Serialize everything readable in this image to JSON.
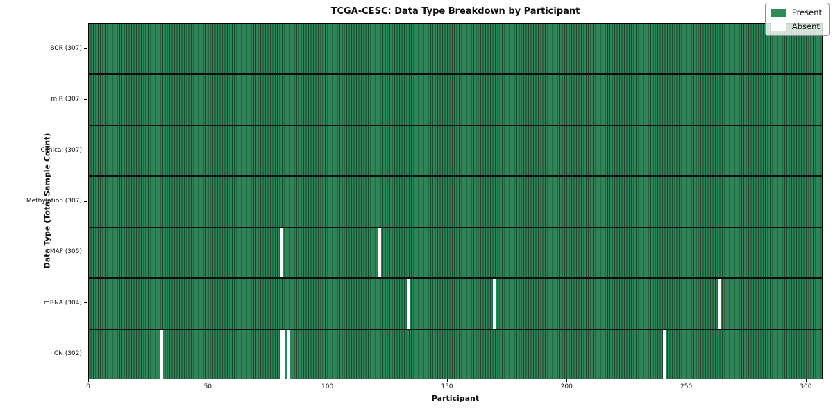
{
  "title": "TCGA-CESC: Data Type Breakdown by Participant",
  "axes": {
    "x_label": "Participant",
    "y_label": "Data Type (Total Sample Count)"
  },
  "legend": {
    "entries": [
      {
        "label": "Present",
        "color": "#2e8b57"
      },
      {
        "label": "Absent",
        "color": "#ffffff"
      }
    ]
  },
  "colors": {
    "present": "#2e8b57",
    "absent": "#ffffff",
    "gridline": "#1d4831",
    "row_separator": "#0c0c0c"
  },
  "chart_data": {
    "type": "heatmap",
    "title": "TCGA-CESC: Data Type Breakdown by Participant",
    "xlabel": "Participant",
    "ylabel": "Data Type (Total Sample Count)",
    "n_participants": 307,
    "x_ticks": [
      0,
      50,
      100,
      150,
      200,
      250,
      300
    ],
    "xlim": [
      0,
      307
    ],
    "legend_position": "upper right",
    "grid": "per-cell vertical gridlines, black separators between rows",
    "rows": [
      {
        "label": "BCR (307)",
        "data_type": "BCR",
        "present_count": 307,
        "absent_count": 0,
        "absent_participants": []
      },
      {
        "label": "miR (307)",
        "data_type": "miR",
        "present_count": 307,
        "absent_count": 0,
        "absent_participants": []
      },
      {
        "label": "Clinical (307)",
        "data_type": "Clinical",
        "present_count": 307,
        "absent_count": 0,
        "absent_participants": []
      },
      {
        "label": "Methylation (307)",
        "data_type": "Methylation",
        "present_count": 307,
        "absent_count": 0,
        "absent_participants": []
      },
      {
        "label": "MAF (305)",
        "data_type": "MAF",
        "present_count": 305,
        "absent_count": 2,
        "absent_participants": [
          80,
          121
        ]
      },
      {
        "label": "mRNA (304)",
        "data_type": "mRNA",
        "present_count": 304,
        "absent_count": 3,
        "absent_participants": [
          133,
          169,
          263
        ]
      },
      {
        "label": "CN (302)",
        "data_type": "CN",
        "present_count": 302,
        "absent_count": 5,
        "absent_participants": [
          30,
          80,
          81,
          83,
          240
        ]
      }
    ]
  }
}
